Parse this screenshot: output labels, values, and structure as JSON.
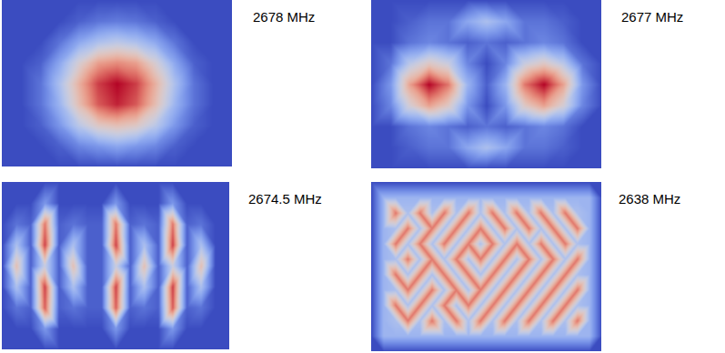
{
  "chart_data": [
    {
      "type": "heatmap",
      "title": "2678 MHz",
      "tick_labels": false,
      "value_range": [
        0,
        1
      ],
      "cells": [
        [
          0,
          0,
          0,
          0,
          0,
          0,
          0,
          0,
          0,
          0,
          0,
          0,
          0
        ],
        [
          0,
          0,
          0,
          0,
          0.05,
          0.1,
          0.12,
          0.1,
          0.05,
          0,
          0,
          0,
          0
        ],
        [
          0,
          0,
          0,
          0.1,
          0.25,
          0.35,
          0.4,
          0.35,
          0.25,
          0.1,
          0,
          0,
          0
        ],
        [
          0,
          0,
          0.05,
          0.25,
          0.5,
          0.7,
          0.75,
          0.7,
          0.5,
          0.25,
          0.05,
          0,
          0
        ],
        [
          0,
          0,
          0.1,
          0.35,
          0.65,
          0.9,
          1,
          0.9,
          0.65,
          0.35,
          0.1,
          0,
          0
        ],
        [
          0,
          0,
          0.1,
          0.3,
          0.6,
          0.85,
          0.95,
          0.85,
          0.6,
          0.3,
          0.1,
          0,
          0
        ],
        [
          0,
          0,
          0.05,
          0.2,
          0.4,
          0.55,
          0.6,
          0.55,
          0.4,
          0.2,
          0.05,
          0,
          0
        ],
        [
          0,
          0,
          0,
          0.05,
          0.15,
          0.2,
          0.25,
          0.2,
          0.15,
          0.05,
          0,
          0,
          0
        ],
        [
          0,
          0,
          0,
          0,
          0,
          0,
          0,
          0,
          0,
          0,
          0,
          0,
          0
        ]
      ]
    },
    {
      "type": "heatmap",
      "title": "2677 MHz",
      "tick_labels": false,
      "value_range": [
        0,
        1
      ],
      "cells": [
        [
          0,
          0,
          0,
          0,
          0,
          0,
          0,
          0,
          0,
          0,
          0,
          0,
          0
        ],
        [
          0,
          0,
          0.05,
          0.1,
          0.1,
          0.25,
          0.35,
          0.25,
          0.1,
          0.1,
          0.05,
          0,
          0
        ],
        [
          0,
          0,
          0.1,
          0.15,
          0.1,
          0.05,
          0.1,
          0.05,
          0.1,
          0.15,
          0.1,
          0,
          0
        ],
        [
          0,
          0.1,
          0.4,
          0.55,
          0.45,
          0.15,
          0,
          0.15,
          0.45,
          0.55,
          0.4,
          0.1,
          0
        ],
        [
          0,
          0.2,
          0.7,
          1,
          0.8,
          0.3,
          0.05,
          0.3,
          0.8,
          1,
          0.7,
          0.2,
          0
        ],
        [
          0,
          0.15,
          0.5,
          0.7,
          0.55,
          0.2,
          0,
          0.2,
          0.55,
          0.7,
          0.5,
          0.15,
          0
        ],
        [
          0,
          0,
          0.1,
          0.15,
          0.1,
          0.05,
          0.1,
          0.05,
          0.1,
          0.15,
          0.1,
          0,
          0
        ],
        [
          0,
          0,
          0.05,
          0.1,
          0.1,
          0.25,
          0.35,
          0.25,
          0.1,
          0.1,
          0.05,
          0,
          0
        ],
        [
          0,
          0,
          0,
          0,
          0,
          0,
          0,
          0,
          0,
          0,
          0,
          0,
          0
        ]
      ]
    },
    {
      "type": "heatmap",
      "title": "2674.5 MHz",
      "tick_labels": false,
      "value_range": [
        0,
        1
      ],
      "cells": [
        [
          0,
          0,
          0,
          0,
          0,
          0,
          0,
          0,
          0,
          0,
          0,
          0,
          0,
          0,
          0,
          0,
          0
        ],
        [
          0,
          0,
          0,
          0.2,
          0,
          0,
          0,
          0,
          0.2,
          0,
          0,
          0,
          0.2,
          0,
          0,
          0,
          0
        ],
        [
          0,
          0.1,
          0.05,
          0.8,
          0.05,
          0.1,
          0.05,
          0.05,
          0.8,
          0.05,
          0.1,
          0.05,
          0.8,
          0.05,
          0.1,
          0,
          0
        ],
        [
          0,
          0.35,
          0.05,
          0.9,
          0.05,
          0.35,
          0.05,
          0.05,
          0.9,
          0.05,
          0.35,
          0.05,
          0.9,
          0.05,
          0.35,
          0,
          0
        ],
        [
          0,
          0.6,
          0.05,
          0.45,
          0.05,
          0.6,
          0.05,
          0.05,
          0.45,
          0.05,
          0.6,
          0.05,
          0.45,
          0.05,
          0.6,
          0,
          0
        ],
        [
          0,
          0.35,
          0.05,
          0.9,
          0.05,
          0.35,
          0.05,
          0.05,
          0.9,
          0.05,
          0.35,
          0.05,
          0.9,
          0.05,
          0.35,
          0,
          0
        ],
        [
          0,
          0.1,
          0.05,
          0.85,
          0.05,
          0.1,
          0.05,
          0.05,
          0.85,
          0.05,
          0.1,
          0.05,
          0.85,
          0.05,
          0.1,
          0,
          0
        ],
        [
          0,
          0,
          0,
          0.2,
          0,
          0,
          0,
          0,
          0.2,
          0,
          0,
          0,
          0.2,
          0,
          0,
          0,
          0
        ],
        [
          0,
          0,
          0,
          0,
          0,
          0,
          0,
          0,
          0,
          0,
          0,
          0,
          0,
          0,
          0,
          0,
          0
        ]
      ]
    },
    {
      "type": "heatmap",
      "title": "2638 MHz",
      "tick_labels": false,
      "value_range": [
        0,
        1
      ],
      "cells": [
        [
          0,
          0,
          0,
          0,
          0,
          0,
          0,
          0,
          0,
          0,
          0,
          0,
          0,
          0,
          0,
          0,
          0,
          0,
          0,
          0
        ],
        [
          0,
          0.3,
          0.3,
          0.3,
          0.3,
          0.3,
          0.3,
          0.3,
          0.3,
          0.3,
          0.3,
          0.3,
          0.3,
          0.3,
          0.3,
          0.3,
          0.3,
          0.3,
          0.3,
          0
        ],
        [
          0,
          0.3,
          0.8,
          0.35,
          0.8,
          0.35,
          0.8,
          0.35,
          0.8,
          0.35,
          0.8,
          0.35,
          0.8,
          0.35,
          0.8,
          0.35,
          0.8,
          0.35,
          0.3,
          0
        ],
        [
          0,
          0.3,
          0.35,
          0.8,
          0.35,
          0.8,
          0.35,
          0.8,
          0.35,
          0.8,
          0.35,
          0.8,
          0.35,
          0.8,
          0.35,
          0.8,
          0.35,
          0.8,
          0.3,
          0
        ],
        [
          0,
          0.3,
          0.8,
          0.35,
          0.8,
          0.35,
          0.8,
          0.35,
          0.8,
          0.35,
          0.8,
          0.35,
          0.8,
          0.35,
          0.8,
          0.35,
          0.8,
          0.35,
          0.3,
          0
        ],
        [
          0,
          0.3,
          0.35,
          0.8,
          0.35,
          0.8,
          0.35,
          0.8,
          0.35,
          0.8,
          0.35,
          0.8,
          0.35,
          0.8,
          0.35,
          0.8,
          0.35,
          0.8,
          0.3,
          0
        ],
        [
          0,
          0.3,
          0.8,
          0.35,
          0.8,
          0.35,
          0.8,
          0.35,
          0.8,
          0.35,
          0.8,
          0.35,
          0.8,
          0.35,
          0.8,
          0.35,
          0.8,
          0.35,
          0.3,
          0
        ],
        [
          0,
          0.3,
          0.35,
          0.8,
          0.35,
          0.8,
          0.35,
          0.8,
          0.35,
          0.8,
          0.35,
          0.8,
          0.35,
          0.8,
          0.35,
          0.8,
          0.35,
          0.8,
          0.3,
          0
        ],
        [
          0,
          0.3,
          0.8,
          0.35,
          0.8,
          0.35,
          0.8,
          0.35,
          0.8,
          0.35,
          0.8,
          0.35,
          0.8,
          0.35,
          0.8,
          0.35,
          0.8,
          0.35,
          0.3,
          0
        ],
        [
          0,
          0.3,
          0.35,
          0.8,
          0.35,
          0.8,
          0.35,
          0.8,
          0.35,
          0.8,
          0.35,
          0.8,
          0.35,
          0.8,
          0.35,
          0.8,
          0.35,
          0.8,
          0.3,
          0
        ],
        [
          0,
          0.3,
          0.3,
          0.3,
          0.3,
          0.3,
          0.3,
          0.3,
          0.3,
          0.3,
          0.3,
          0.3,
          0.3,
          0.3,
          0.3,
          0.3,
          0.3,
          0.3,
          0.3,
          0
        ],
        [
          0,
          0,
          0,
          0,
          0,
          0,
          0,
          0,
          0,
          0,
          0,
          0,
          0,
          0,
          0,
          0,
          0,
          0,
          0,
          0
        ]
      ]
    }
  ]
}
